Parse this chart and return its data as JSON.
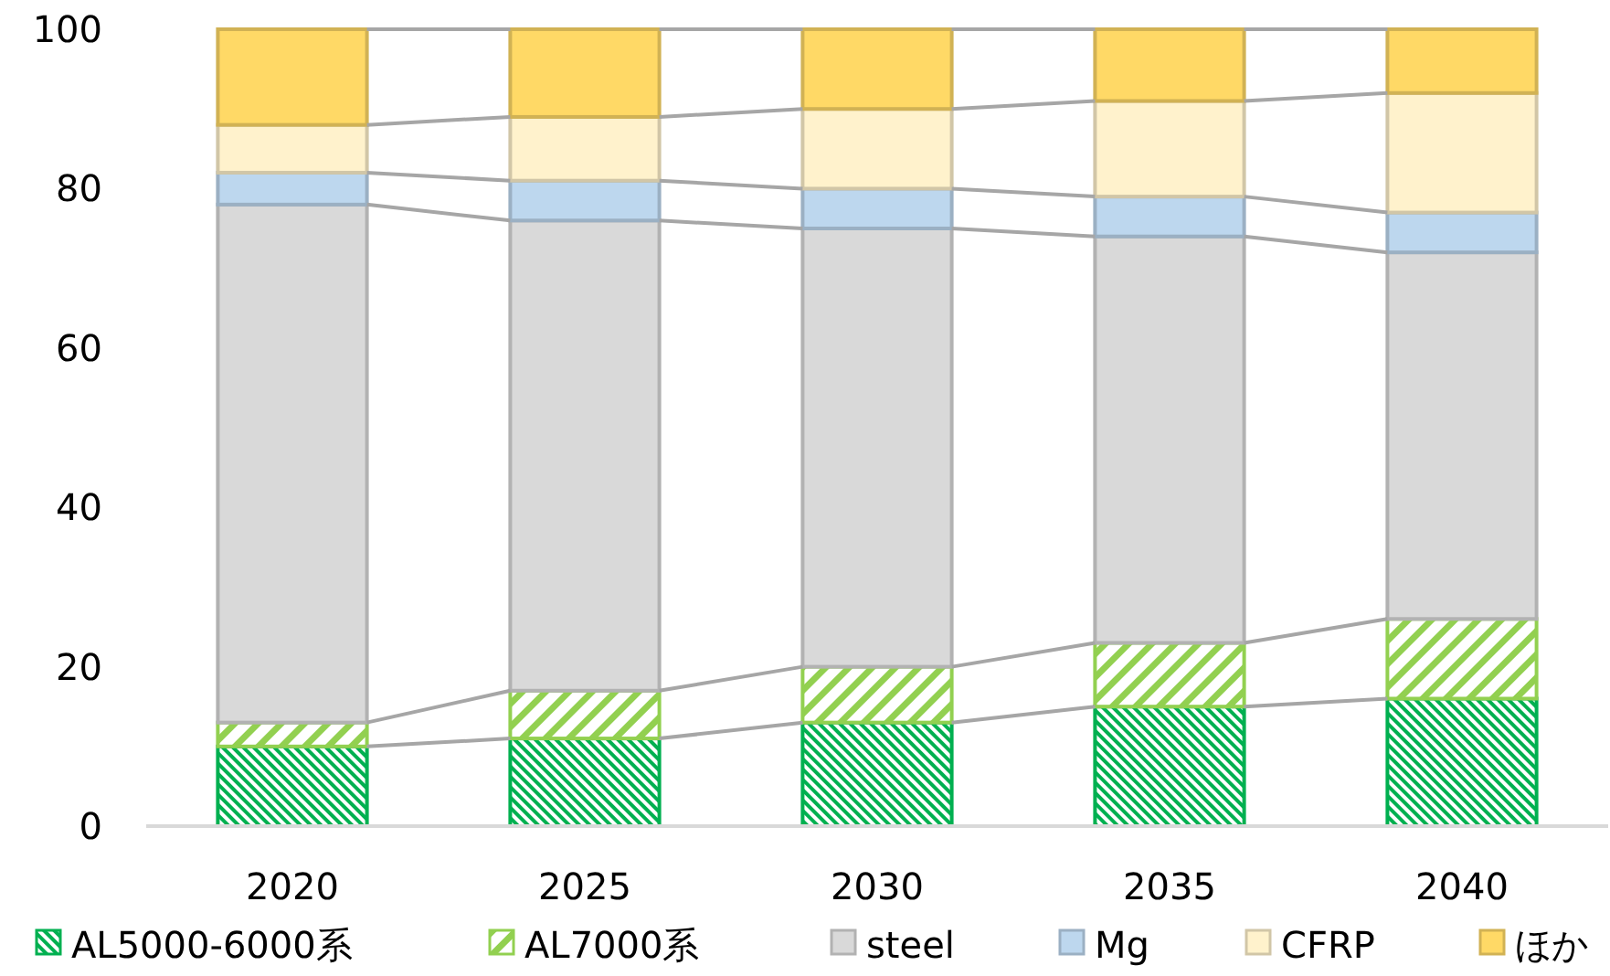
{
  "chart_data": {
    "type": "bar",
    "stacked": true,
    "categories": [
      "2020",
      "2025",
      "2030",
      "2035",
      "2040"
    ],
    "series": [
      {
        "name": "AL5000-6000系",
        "color": "#00b050",
        "values": [
          10,
          11,
          13,
          15,
          16
        ]
      },
      {
        "name": "AL7000系",
        "color": "#92d050",
        "values": [
          3,
          6,
          7,
          8,
          10
        ]
      },
      {
        "name": "steel",
        "color": "#d9d9d9",
        "values": [
          65,
          59,
          55,
          51,
          46
        ]
      },
      {
        "name": "Mg",
        "color": "#bdd7ee",
        "values": [
          4,
          5,
          5,
          5,
          5
        ]
      },
      {
        "name": "CFRP",
        "color": "#fff2cc",
        "values": [
          6,
          8,
          10,
          12,
          15
        ]
      },
      {
        "name": "ほか",
        "color": "#ffd966",
        "values": [
          12,
          11,
          10,
          9,
          8
        ]
      }
    ],
    "ylim": [
      0,
      100
    ],
    "yticks": [
      0,
      20,
      40,
      60,
      80,
      100
    ],
    "grid": false,
    "legend": "bottom"
  }
}
